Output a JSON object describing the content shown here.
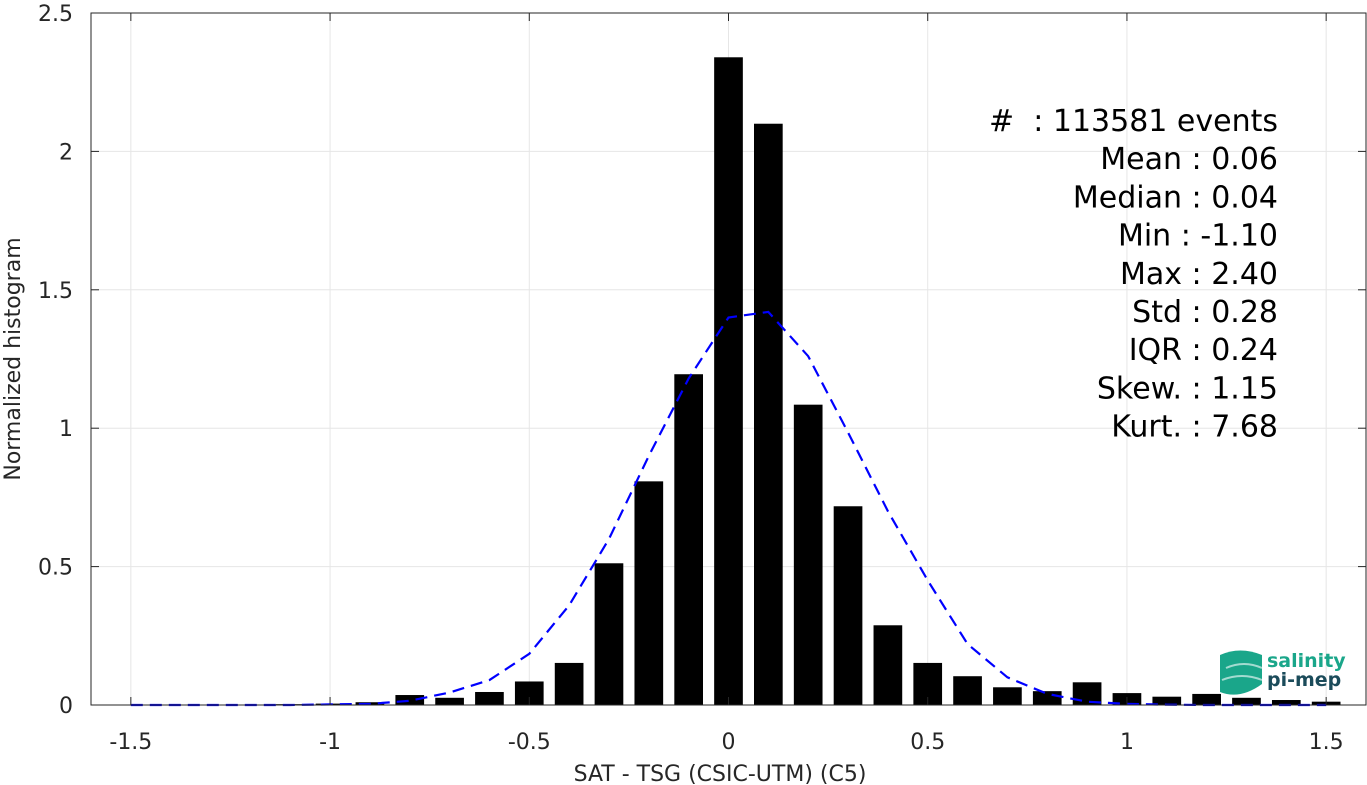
{
  "chart_data": {
    "type": "bar",
    "xlabel": "SAT - TSG (CSIC-UTM) (C5)",
    "ylabel": "Normalized histogram",
    "xlim": [
      -1.6,
      1.6
    ],
    "ylim": [
      0,
      2.5
    ],
    "grid": true,
    "x_ticks": [
      "-1.5",
      "-1",
      "-0.5",
      "0",
      "0.5",
      "1",
      "1.5"
    ],
    "x_tick_values": [
      -1.5,
      -1,
      -0.5,
      0,
      0.5,
      1,
      1.5
    ],
    "y_ticks": [
      "0",
      "0.5",
      "1",
      "1.5",
      "2",
      "2.5"
    ],
    "y_tick_values": [
      0,
      0.5,
      1,
      1.5,
      2,
      2.5
    ],
    "bar_color": "#000000",
    "bars": {
      "x": [
        -1.5,
        -1.4,
        -1.3,
        -1.2,
        -1.1,
        -1.0,
        -0.9,
        -0.8,
        -0.7,
        -0.6,
        -0.5,
        -0.4,
        -0.3,
        -0.2,
        -0.1,
        0.0,
        0.1,
        0.2,
        0.3,
        0.4,
        0.5,
        0.6,
        0.7,
        0.8,
        0.9,
        1.0,
        1.1,
        1.2,
        1.3,
        1.4,
        1.5
      ],
      "values": [
        0,
        0,
        0,
        0,
        0.003,
        0.005,
        0.01,
        0.036,
        0.026,
        0.047,
        0.085,
        0.152,
        0.512,
        0.808,
        1.195,
        2.34,
        2.1,
        1.085,
        0.718,
        0.288,
        0.152,
        0.104,
        0.064,
        0.05,
        0.082,
        0.043,
        0.03,
        0.04,
        0.026,
        0.018,
        0.012
      ]
    },
    "gaussian_fit": {
      "color": "#0000ff",
      "style": "dashed",
      "x": [
        -1.5,
        -1.4,
        -1.3,
        -1.2,
        -1.1,
        -1.0,
        -0.9,
        -0.8,
        -0.7,
        -0.6,
        -0.5,
        -0.4,
        -0.3,
        -0.2,
        -0.1,
        0.0,
        0.1,
        0.2,
        0.3,
        0.4,
        0.5,
        0.6,
        0.7,
        0.8,
        0.9,
        1.0,
        1.1,
        1.2,
        1.3,
        1.4,
        1.5
      ],
      "values": [
        0,
        0,
        0,
        0,
        0,
        0.002,
        0.004,
        0.015,
        0.045,
        0.09,
        0.185,
        0.36,
        0.6,
        0.9,
        1.18,
        1.4,
        1.42,
        1.26,
        0.985,
        0.7,
        0.45,
        0.22,
        0.1,
        0.04,
        0.012,
        0.004,
        0.001,
        0,
        0,
        0,
        0
      ]
    },
    "stats_box": [
      "#  : 113581 events",
      "Mean : 0.06",
      "Median : 0.04",
      "Min : -1.10",
      "Max : 2.40",
      "Std : 0.28",
      "IQR : 0.24",
      "Skew. : 1.15",
      "Kurt. : 7.68"
    ]
  },
  "logo": {
    "line1": "salinity",
    "line2": "pi-mep",
    "color1": "#1aa68a",
    "color2": "#1b4b5a"
  }
}
